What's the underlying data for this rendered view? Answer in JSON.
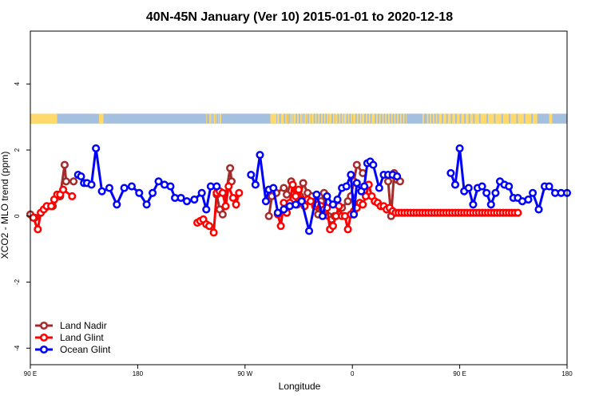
{
  "chart_data": {
    "type": "line",
    "title": "40N-45N January (Ver 10)   2015-01-01 to 2020-12-18",
    "xlabel": "Longitude",
    "ylabel": "XCO2 - MLO trend (ppm)",
    "xlim": [
      90,
      450
    ],
    "ylim": [
      -4.5,
      5.6
    ],
    "xticks": [
      90,
      162,
      234,
      306,
      378,
      450
    ],
    "xtick_labels": [
      "90 E",
      "180",
      "90 W",
      "0",
      "90 E",
      "180"
    ],
    "yticks": [
      -4,
      -2,
      0,
      2,
      4
    ],
    "ytick_labels": [
      "-4",
      "-2",
      "0",
      "2",
      "4"
    ],
    "legend_position": "bottom-left",
    "land_mask": {
      "y_range": [
        2.8,
        3.1
      ],
      "land_color": "#ffd96b",
      "ocean_color": "#a5bfdf",
      "land_lon": [
        [
          90,
          108
        ],
        [
          136,
          139
        ],
        [
          208,
          208.5
        ],
        [
          210,
          211
        ],
        [
          211.5,
          212
        ],
        [
          213,
          214
        ],
        [
          214.5,
          215
        ],
        [
          216,
          216.5
        ],
        [
          217,
          218
        ],
        [
          251,
          255
        ],
        [
          255.5,
          257
        ],
        [
          258,
          260
        ],
        [
          261,
          262
        ],
        [
          262.5,
          263
        ],
        [
          264,
          264.5
        ],
        [
          265,
          266
        ],
        [
          266.5,
          268
        ],
        [
          269,
          270
        ],
        [
          271,
          272
        ],
        [
          272.5,
          273
        ],
        [
          274,
          275
        ],
        [
          275.5,
          276
        ],
        [
          277,
          278
        ],
        [
          278.5,
          280
        ],
        [
          281,
          282
        ],
        [
          283,
          284
        ],
        [
          285,
          286
        ],
        [
          287,
          288
        ],
        [
          289,
          290
        ],
        [
          290.5,
          292
        ],
        [
          293,
          294
        ],
        [
          294.5,
          296
        ],
        [
          297,
          298
        ],
        [
          299,
          300
        ],
        [
          300.5,
          302
        ],
        [
          303,
          304
        ],
        [
          305,
          306
        ],
        [
          306.5,
          308
        ],
        [
          309,
          310
        ],
        [
          311,
          312
        ],
        [
          312.5,
          314
        ],
        [
          315,
          316
        ],
        [
          317,
          318
        ],
        [
          319,
          321
        ],
        [
          322,
          323
        ],
        [
          324,
          325
        ],
        [
          326,
          327
        ],
        [
          328,
          329
        ],
        [
          330,
          331
        ],
        [
          332,
          333
        ],
        [
          334,
          335
        ],
        [
          336,
          337
        ],
        [
          338,
          339
        ],
        [
          340,
          341
        ],
        [
          342,
          342.5
        ],
        [
          353,
          354
        ],
        [
          356,
          357
        ],
        [
          358,
          359
        ],
        [
          360,
          361
        ],
        [
          362,
          363
        ],
        [
          364,
          366
        ],
        [
          367,
          369
        ],
        [
          370,
          372
        ],
        [
          373,
          375
        ],
        [
          376,
          378
        ],
        [
          379,
          381
        ],
        [
          382,
          384
        ],
        [
          385,
          387
        ],
        [
          388,
          391
        ],
        [
          392,
          396
        ],
        [
          397,
          401
        ],
        [
          402,
          406
        ],
        [
          407,
          411
        ],
        [
          412,
          416
        ],
        [
          417,
          421
        ],
        [
          422,
          426
        ],
        [
          427,
          430
        ],
        [
          438,
          440
        ]
      ]
    },
    "series": [
      {
        "name": "Land Nadir",
        "color": "#a52a2a",
        "x": [
          90,
          93,
          105,
          110,
          113,
          114,
          119,
          215,
          217,
          219,
          224,
          225,
          250,
          252,
          255,
          260,
          262,
          265,
          269,
          271,
          273,
          276,
          279,
          283,
          285,
          287,
          290,
          292,
          294,
          299,
          303,
          305,
          307,
          309,
          313,
          330,
          332,
          334,
          336,
          338
        ],
        "y": [
          0.05,
          -0.05,
          0.3,
          0.6,
          1.55,
          1.05,
          1.05,
          0.65,
          0.2,
          0.05,
          1.45,
          1.05,
          0.0,
          0.6,
          0.7,
          0.85,
          0.65,
          1.05,
          0.35,
          0.6,
          1.0,
          0.7,
          0.6,
          0.05,
          0.45,
          0.7,
          0.0,
          -0.1,
          0.0,
          0.25,
          0.45,
          0.6,
          1.05,
          1.55,
          1.3,
          1.05,
          0.0,
          1.3,
          1.1,
          1.05
        ]
      },
      {
        "name": "Land Glint",
        "color": "#ff0000",
        "x": [
          92,
          95,
          97,
          99,
          101,
          104,
          106,
          108,
          110,
          112,
          118,
          202,
          204,
          206,
          208,
          210,
          213,
          215,
          217,
          219,
          221,
          223,
          226,
          228,
          230,
          256,
          258,
          260,
          262,
          264,
          266,
          268,
          270,
          272,
          274,
          276,
          278,
          281,
          283,
          285,
          287,
          289,
          291,
          293,
          295,
          297,
          299,
          301,
          303,
          305,
          307,
          309,
          311,
          313,
          315,
          317,
          319,
          321,
          323,
          325,
          327,
          329,
          331,
          333,
          335,
          337,
          339,
          341,
          343,
          345,
          347,
          349,
          351,
          353,
          355,
          357,
          359,
          361,
          363,
          365,
          367,
          369,
          371,
          373,
          375,
          377,
          379,
          381,
          383,
          385,
          387,
          389,
          391,
          393,
          395,
          397,
          399,
          401,
          403,
          405,
          407,
          409,
          411,
          413,
          415,
          417
        ],
        "y": [
          -0.05,
          -0.4,
          0.1,
          0.2,
          0.3,
          0.3,
          0.5,
          0.65,
          0.65,
          0.8,
          0.6,
          -0.2,
          -0.15,
          -0.1,
          -0.25,
          -0.3,
          -0.5,
          0.7,
          0.75,
          0.7,
          0.3,
          0.9,
          0.55,
          0.35,
          0.7,
          0.05,
          -0.3,
          0.4,
          0.1,
          0.4,
          0.95,
          0.6,
          0.8,
          0.5,
          0.3,
          0.5,
          0.45,
          0.3,
          0.35,
          0.3,
          0.2,
          0.25,
          -0.4,
          -0.3,
          0.0,
          0.3,
          0.0,
          0.0,
          -0.4,
          0.05,
          0.15,
          0.25,
          0.4,
          0.35,
          0.6,
          0.95,
          0.6,
          0.45,
          0.4,
          0.3,
          0.3,
          0.2,
          0.25,
          0.15,
          0.1,
          0.1,
          0.1,
          0.1,
          0.1,
          0.1,
          0.1,
          0.1,
          0.1,
          0.1,
          0.1,
          0.1,
          0.1,
          0.1,
          0.1,
          0.1,
          0.1,
          0.1,
          0.1,
          0.1,
          0.1,
          0.1,
          0.1,
          0.1,
          0.1,
          0.1,
          0.1,
          0.1,
          0.1,
          0.1,
          0.1,
          0.1,
          0.1,
          0.1,
          0.1,
          0.1,
          0.1,
          0.1,
          0.1,
          0.1,
          0.1,
          0.1
        ]
      },
      {
        "name": "Ocean Glint",
        "color": "#0000ff",
        "x": [
          122,
          124,
          126,
          128,
          131,
          134,
          138,
          143,
          148,
          153,
          158,
          163,
          168,
          172,
          176,
          180,
          184,
          187,
          191,
          195,
          200,
          205,
          208,
          211,
          215,
          238,
          241,
          244,
          248,
          250,
          253,
          256,
          260,
          264,
          268,
          272,
          277,
          282,
          286,
          289,
          293,
          296,
          299,
          302,
          305,
          307,
          309,
          312,
          314,
          316,
          318,
          320,
          324,
          327,
          330,
          333,
          336,
          372,
          375,
          378,
          381,
          384,
          387,
          390,
          393,
          396,
          399,
          402,
          405,
          408,
          411,
          414,
          417,
          420,
          424,
          427,
          431,
          435,
          438,
          442,
          446,
          450
        ],
        "y": [
          1.25,
          1.2,
          1.0,
          1.0,
          0.95,
          2.05,
          0.75,
          0.85,
          0.35,
          0.85,
          0.9,
          0.7,
          0.35,
          0.7,
          1.05,
          0.95,
          0.9,
          0.55,
          0.55,
          0.45,
          0.5,
          0.7,
          0.2,
          0.9,
          0.9,
          1.25,
          0.95,
          1.85,
          0.45,
          0.8,
          0.85,
          0.1,
          0.2,
          0.3,
          0.35,
          0.45,
          -0.45,
          0.65,
          0.0,
          0.6,
          0.35,
          0.5,
          0.85,
          0.9,
          1.25,
          0.05,
          1.0,
          0.75,
          0.9,
          1.6,
          1.65,
          1.55,
          0.85,
          1.25,
          1.25,
          1.25,
          1.2,
          1.3,
          0.95,
          2.05,
          0.75,
          0.85,
          0.35,
          0.85,
          0.9,
          0.7,
          0.35,
          0.7,
          1.05,
          0.95,
          0.9,
          0.55,
          0.55,
          0.45,
          0.5,
          0.7,
          0.2,
          0.9,
          0.9,
          0.7,
          0.7,
          0.7
        ]
      }
    ]
  }
}
